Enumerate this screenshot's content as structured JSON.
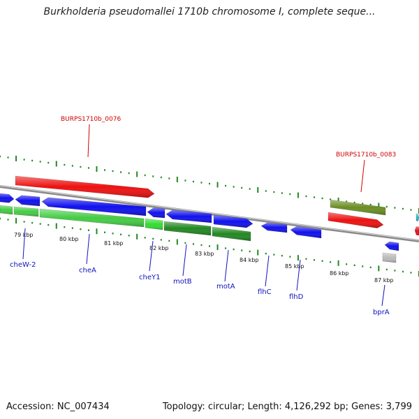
{
  "title": "Burkholderia pseudomallei 1710b chromosome I, complete seque...",
  "footer": {
    "accession": "Accession: NC_007434",
    "topology": "Topology: circular; Length: 4,126,292 bp; Genes: 3,799"
  },
  "colors": {
    "red": "#ee1111",
    "blue": "#1111ee",
    "green_light": "#44cc44",
    "green_dark": "#228822",
    "olive": "#6b8e23",
    "cyan": "#22bbcc",
    "gray": "#bbbbbb",
    "tick_green": "#228822",
    "backbone": "#888888",
    "gene_label": "#1111bb",
    "locus_label": "#cc0000"
  },
  "kbp_labels": [
    "79 kbp",
    "80 kbp",
    "81 kbp",
    "82 kbp",
    "83 kbp",
    "84 kbp",
    "85 kbp",
    "86 kbp",
    "87 kbp"
  ],
  "gene_labels": [
    "cheW-2",
    "cheA",
    "cheY1",
    "motB",
    "motA",
    "flhC",
    "flhD",
    "bprA"
  ],
  "locus_labels": [
    "BURPS1710b_0076",
    "BURPS1710b_0083"
  ]
}
